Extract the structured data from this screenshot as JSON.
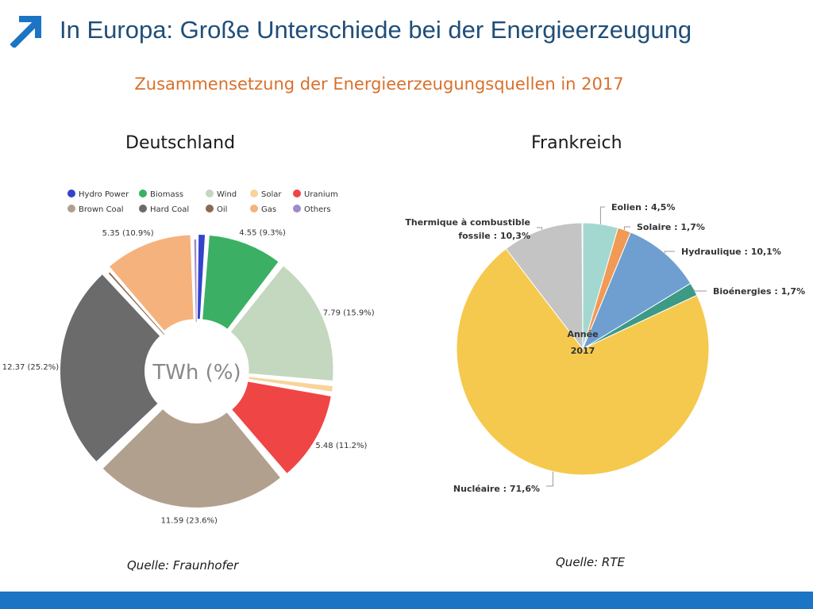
{
  "slide": {
    "title": "In Europa: Große Unterschiede bei der Energieerzeugung",
    "subtitle": "Zusammensetzung der Energieerzeugungsquellen in 2017"
  },
  "colors": {
    "title": "#1f4e79",
    "subtitle": "#d9702b",
    "accent": "#1b74c4"
  },
  "icons": {
    "title_icon": "arrow-up-right-icon"
  },
  "germany": {
    "heading": "Deutschland",
    "source": "Quelle: Fraunhofer",
    "center_label": "TWh (%)"
  },
  "france": {
    "heading": "Frankreich",
    "source": "Quelle: RTE",
    "center_label_1": "Année",
    "center_label_2": "2017"
  },
  "chart_data": [
    {
      "type": "pie",
      "variant": "donut",
      "title": "",
      "center_label": "TWh (%)",
      "legend_placement": "top",
      "slices": [
        {
          "name": "Hydro Power",
          "value": 0.55,
          "percent": 1.1,
          "label": "",
          "color": "#3344cc"
        },
        {
          "name": "Biomass",
          "value": 4.55,
          "percent": 9.3,
          "label": "4.55 (9.3%)",
          "color": "#3bb064"
        },
        {
          "name": "Wind",
          "value": 7.79,
          "percent": 15.9,
          "label": "7.79 (15.9%)",
          "color": "#c3d8bf"
        },
        {
          "name": "Solar",
          "value": 0.5,
          "percent": 1.0,
          "label": "",
          "color": "#f8d49a"
        },
        {
          "name": "Uranium",
          "value": 5.48,
          "percent": 11.2,
          "label": "5.48 (11.2%)",
          "color": "#f04545"
        },
        {
          "name": "Brown Coal",
          "value": 11.59,
          "percent": 23.6,
          "label": "11.59 (23.6%)",
          "color": "#b2a08f"
        },
        {
          "name": "Hard Coal",
          "value": 12.37,
          "percent": 25.2,
          "label": "12.37 (25.2%)",
          "color": "#6b6b6b"
        },
        {
          "name": "Oil",
          "value": 0.15,
          "percent": 0.3,
          "label": "",
          "color": "#8a6a52"
        },
        {
          "name": "Gas",
          "value": 5.35,
          "percent": 10.9,
          "label": "5.35 (10.9%)",
          "color": "#f6b27d"
        },
        {
          "name": "Others",
          "value": 0.2,
          "percent": 0.4,
          "label": "",
          "color": "#a08ac8"
        }
      ]
    },
    {
      "type": "pie",
      "title": "",
      "center_label": "Année 2017",
      "slices": [
        {
          "name": "Eolien",
          "percent": 4.5,
          "label": "Eolien : 4,5%",
          "color": "#a3d8d0"
        },
        {
          "name": "Solaire",
          "percent": 1.7,
          "label": "Solaire : 1,7%",
          "color": "#f19a56"
        },
        {
          "name": "Hydraulique",
          "percent": 10.1,
          "label": "Hydraulique : 10,1%",
          "color": "#6e9fd0"
        },
        {
          "name": "Bioénergies",
          "percent": 1.7,
          "label": "Bioénergies : 1,7%",
          "color": "#3c9a86"
        },
        {
          "name": "Nucléaire",
          "percent": 71.6,
          "label": "Nucléaire : 71,6%",
          "color": "#f5c94d"
        },
        {
          "name": "Thermique à combustible fossile",
          "percent": 10.3,
          "label_line1": "Thermique à combustible",
          "label_line2": "fossile : 10,3%",
          "color": "#c4c4c4"
        }
      ]
    }
  ]
}
